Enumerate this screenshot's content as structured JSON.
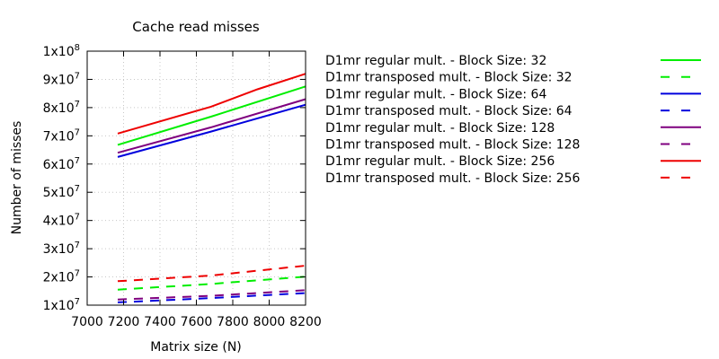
{
  "chart_data": {
    "type": "line",
    "title": "Cache read misses",
    "xlabel": "Matrix size (N)",
    "ylabel": "Number of misses",
    "xlim": [
      7000,
      8200
    ],
    "ylim": [
      10000000,
      100000000
    ],
    "grid": true,
    "legend_position": "outside-right",
    "x_ticks": [
      {
        "value": 7000,
        "label": "7000"
      },
      {
        "value": 7200,
        "label": "7200"
      },
      {
        "value": 7400,
        "label": "7400"
      },
      {
        "value": 7600,
        "label": "7600"
      },
      {
        "value": 7800,
        "label": "7800"
      },
      {
        "value": 8000,
        "label": "8000"
      },
      {
        "value": 8200,
        "label": "8200"
      }
    ],
    "y_ticks": [
      {
        "value": 10000000,
        "base": "1x10",
        "exp": "7"
      },
      {
        "value": 20000000,
        "base": "2x10",
        "exp": "7"
      },
      {
        "value": 30000000,
        "base": "3x10",
        "exp": "7"
      },
      {
        "value": 40000000,
        "base": "4x10",
        "exp": "7"
      },
      {
        "value": 50000000,
        "base": "5x10",
        "exp": "7"
      },
      {
        "value": 60000000,
        "base": "6x10",
        "exp": "7"
      },
      {
        "value": 70000000,
        "base": "7x10",
        "exp": "7"
      },
      {
        "value": 80000000,
        "base": "8x10",
        "exp": "7"
      },
      {
        "value": 90000000,
        "base": "9x10",
        "exp": "7"
      },
      {
        "value": 100000000,
        "base": "1x10",
        "exp": "8"
      }
    ],
    "series": [
      {
        "name": "D1mr regular mult. - Block Size: 32",
        "color": "#00ee00",
        "dash": false,
        "points": [
          [
            7168,
            66800000
          ],
          [
            7680,
            76800000
          ],
          [
            8200,
            87500000
          ]
        ]
      },
      {
        "name": "D1mr transposed mult. - Block Size: 32",
        "color": "#00ee00",
        "dash": true,
        "points": [
          [
            7168,
            15500000
          ],
          [
            7680,
            17500000
          ],
          [
            8200,
            20100000
          ]
        ]
      },
      {
        "name": "D1mr regular mult. - Block Size: 64",
        "color": "#0000dd",
        "dash": false,
        "points": [
          [
            7168,
            62500000
          ],
          [
            7680,
            71500000
          ],
          [
            8200,
            81000000
          ]
        ]
      },
      {
        "name": "D1mr transposed mult. - Block Size: 64",
        "color": "#0000dd",
        "dash": true,
        "points": [
          [
            7168,
            11000000
          ],
          [
            7680,
            12500000
          ],
          [
            8200,
            14300000
          ]
        ]
      },
      {
        "name": "D1mr regular mult. - Block Size: 128",
        "color": "#7f007f",
        "dash": false,
        "points": [
          [
            7168,
            64000000
          ],
          [
            7680,
            73000000
          ],
          [
            8200,
            83000000
          ]
        ]
      },
      {
        "name": "D1mr transposed mult. - Block Size: 128",
        "color": "#7f007f",
        "dash": true,
        "points": [
          [
            7168,
            12000000
          ],
          [
            7680,
            13300000
          ],
          [
            8200,
            15300000
          ]
        ]
      },
      {
        "name": "D1mr regular mult. - Block Size: 256",
        "color": "#ee0000",
        "dash": false,
        "points": [
          [
            7168,
            70800000
          ],
          [
            7680,
            80300000
          ],
          [
            7936,
            86500000
          ],
          [
            8200,
            92000000
          ]
        ]
      },
      {
        "name": "D1mr transposed mult. - Block Size: 256",
        "color": "#ee0000",
        "dash": true,
        "points": [
          [
            7168,
            18500000
          ],
          [
            7680,
            20500000
          ],
          [
            8200,
            24000000
          ]
        ]
      }
    ]
  }
}
